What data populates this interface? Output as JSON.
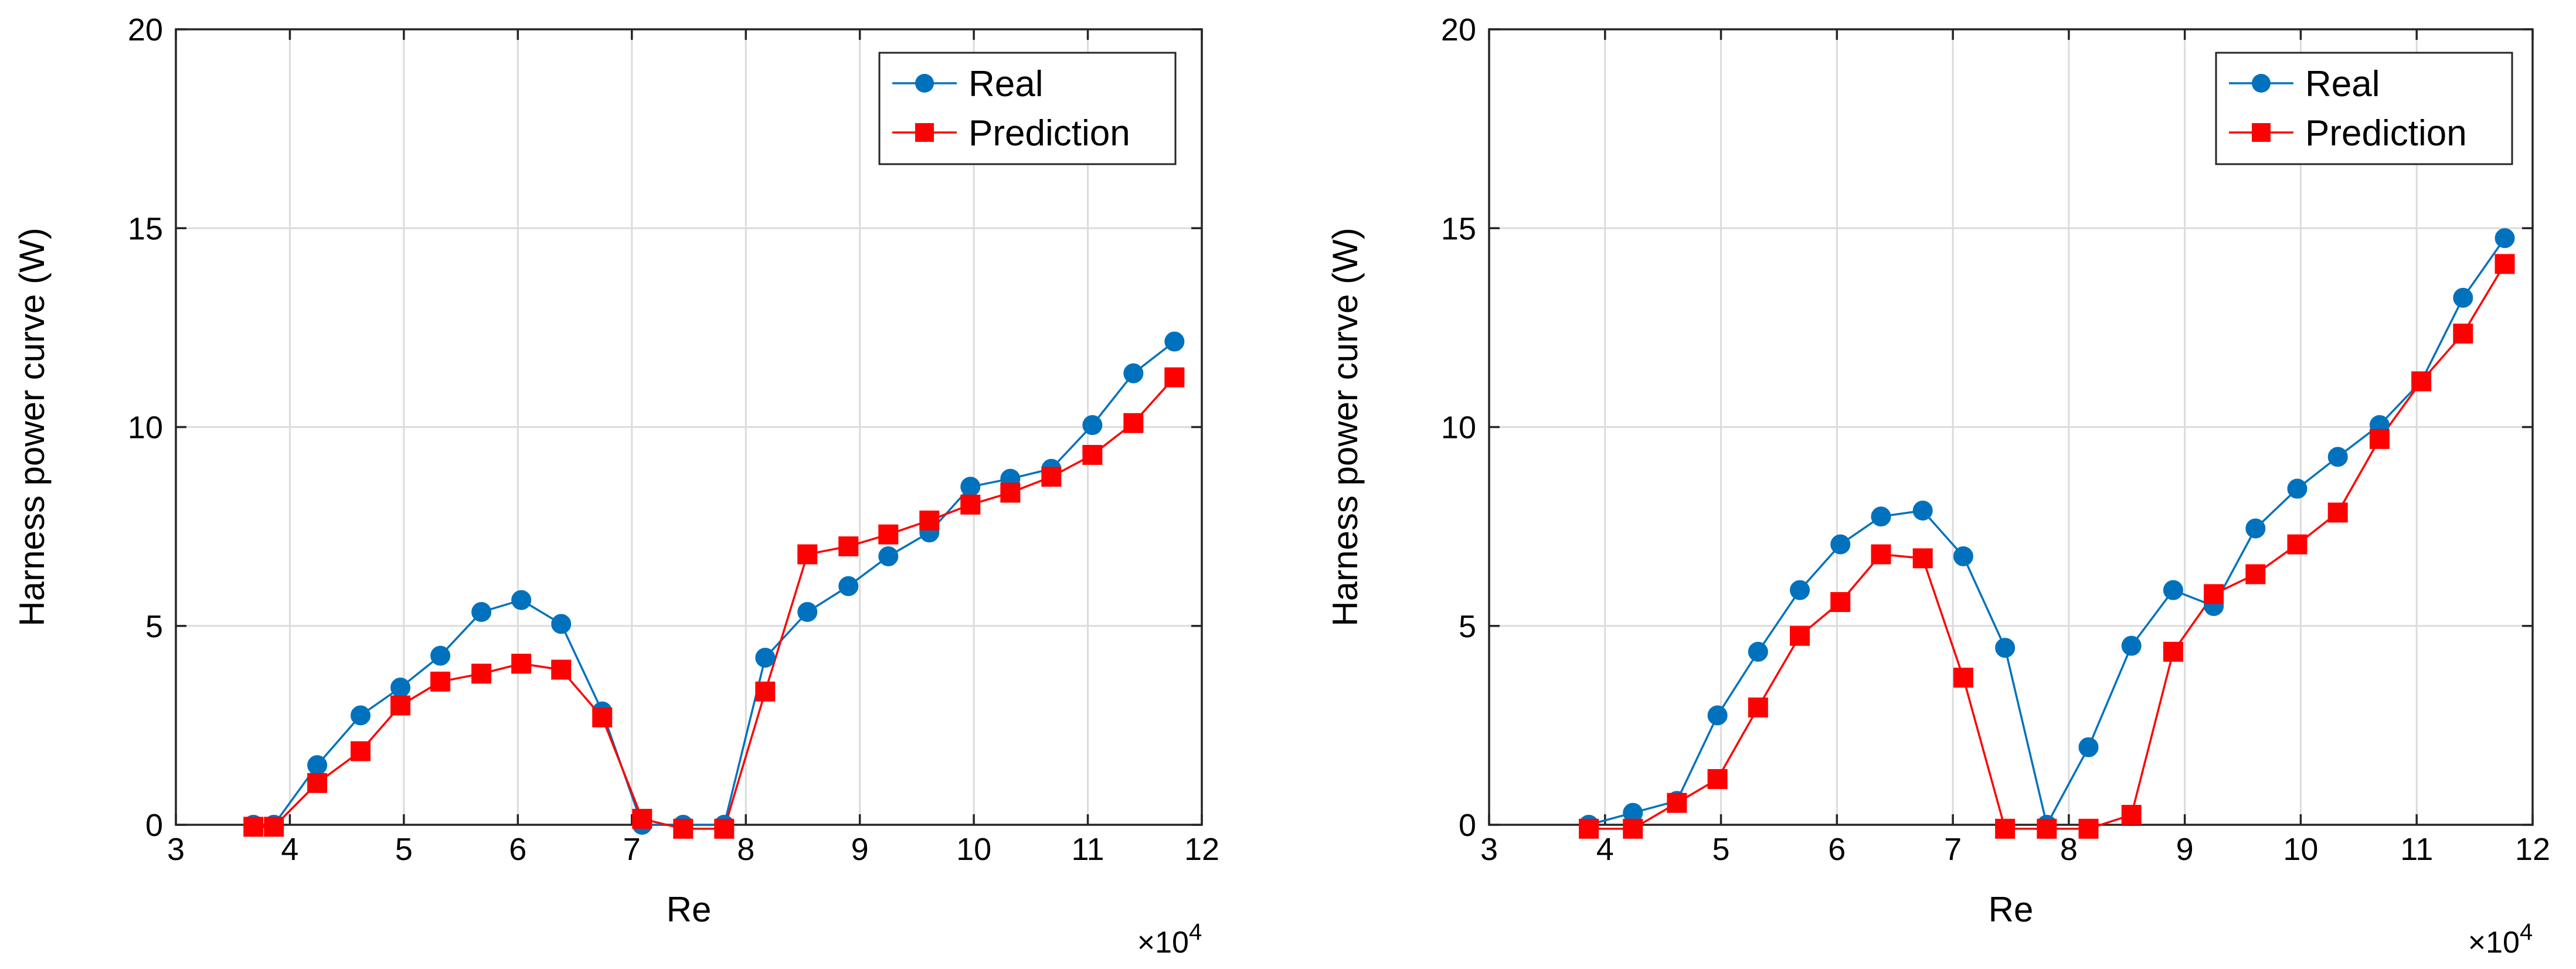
{
  "colors": {
    "real": "#0072BD",
    "prediction": "#FF0000",
    "grid": "#DCDCDC",
    "axis": "#262626"
  },
  "chart_data": [
    {
      "type": "line",
      "title": "",
      "xlabel": "Re",
      "ylabel": "Harness power curve (W)",
      "x_multiplier": "×10",
      "x_multiplier_exp": "4",
      "xlim": [
        3,
        12
      ],
      "ylim": [
        0,
        20
      ],
      "xticks": [
        "3",
        "4",
        "5",
        "6",
        "7",
        "8",
        "9",
        "10",
        "11",
        "12"
      ],
      "yticks": [
        "0",
        "5",
        "10",
        "15",
        "20"
      ],
      "grid": true,
      "legend": "top-right",
      "series": [
        {
          "name": "Real",
          "color": "#0072BD",
          "marker": "circle",
          "x": [
            3.68,
            3.86,
            4.24,
            4.62,
            4.97,
            5.32,
            5.68,
            6.03,
            6.38,
            6.74,
            7.09,
            7.45,
            7.81,
            8.17,
            8.54,
            8.9,
            9.25,
            9.61,
            9.97,
            10.32,
            10.68,
            11.04,
            11.4,
            11.76
          ],
          "y": [
            0.0,
            0.0,
            1.5,
            2.75,
            3.45,
            4.25,
            5.35,
            5.65,
            5.05,
            2.85,
            0.0,
            0.0,
            0.0,
            4.2,
            5.35,
            6.0,
            6.75,
            7.35,
            8.5,
            8.7,
            8.95,
            10.05,
            11.35,
            12.15
          ]
        },
        {
          "name": "Prediction",
          "color": "#FF0000",
          "marker": "square",
          "x": [
            3.68,
            3.86,
            4.24,
            4.62,
            4.97,
            5.32,
            5.68,
            6.03,
            6.38,
            6.74,
            7.09,
            7.45,
            7.81,
            8.17,
            8.54,
            8.9,
            9.25,
            9.61,
            9.97,
            10.32,
            10.68,
            11.04,
            11.4,
            11.76
          ],
          "y": [
            -0.05,
            -0.05,
            1.05,
            1.85,
            3.0,
            3.6,
            3.8,
            4.05,
            3.9,
            2.7,
            0.15,
            -0.1,
            -0.1,
            3.35,
            6.8,
            7.0,
            7.3,
            7.65,
            8.05,
            8.35,
            8.75,
            9.3,
            10.1,
            11.25
          ]
        }
      ]
    },
    {
      "type": "line",
      "title": "",
      "xlabel": "Re",
      "ylabel": "Harness power curve (W)",
      "x_multiplier": "×10",
      "x_multiplier_exp": "4",
      "xlim": [
        3,
        12
      ],
      "ylim": [
        0,
        20
      ],
      "xticks": [
        "3",
        "4",
        "5",
        "6",
        "7",
        "8",
        "9",
        "10",
        "11",
        "12"
      ],
      "yticks": [
        "0",
        "5",
        "10",
        "15",
        "20"
      ],
      "grid": true,
      "legend": "top-right",
      "series": [
        {
          "name": "Real",
          "color": "#0072BD",
          "marker": "circle",
          "x": [
            3.86,
            4.24,
            4.62,
            4.97,
            5.32,
            5.68,
            6.03,
            6.38,
            6.74,
            7.09,
            7.45,
            7.81,
            8.17,
            8.54,
            8.9,
            9.25,
            9.61,
            9.97,
            10.32,
            10.68,
            11.04,
            11.4,
            11.76
          ],
          "y": [
            0.0,
            0.3,
            0.6,
            2.75,
            4.35,
            5.9,
            7.05,
            7.75,
            7.9,
            6.75,
            4.45,
            0.0,
            1.95,
            4.5,
            5.9,
            5.5,
            7.45,
            8.45,
            9.25,
            10.05,
            11.15,
            13.25,
            14.75
          ]
        },
        {
          "name": "Prediction",
          "color": "#FF0000",
          "marker": "square",
          "x": [
            3.86,
            4.24,
            4.62,
            4.97,
            5.32,
            5.68,
            6.03,
            6.38,
            6.74,
            7.09,
            7.45,
            7.81,
            8.17,
            8.54,
            8.9,
            9.25,
            9.61,
            9.97,
            10.32,
            10.68,
            11.04,
            11.4,
            11.76
          ],
          "y": [
            -0.1,
            -0.1,
            0.55,
            1.15,
            2.95,
            4.75,
            5.6,
            6.8,
            6.7,
            3.7,
            -0.1,
            -0.1,
            -0.1,
            0.25,
            4.35,
            5.8,
            6.3,
            7.05,
            7.85,
            9.7,
            11.15,
            12.35,
            14.1
          ]
        }
      ]
    }
  ]
}
